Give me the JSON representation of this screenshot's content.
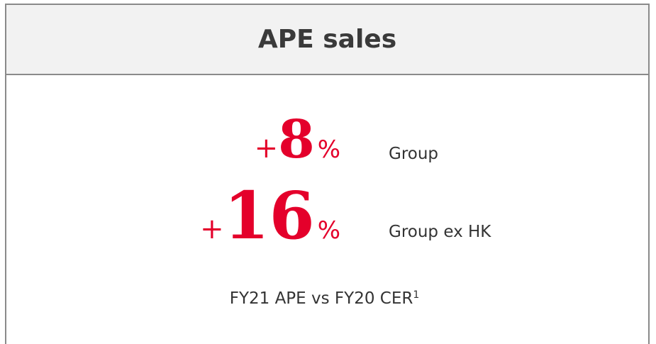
{
  "header": {
    "title": "APE sales"
  },
  "metrics": [
    {
      "sign": "+",
      "value": "8",
      "unit": "%",
      "label": "Group"
    },
    {
      "sign": "+",
      "value": "16",
      "unit": "%",
      "label": "Group ex HK"
    }
  ],
  "footnote": {
    "text": "FY21 APE vs FY20 CER",
    "marker": "1"
  }
}
